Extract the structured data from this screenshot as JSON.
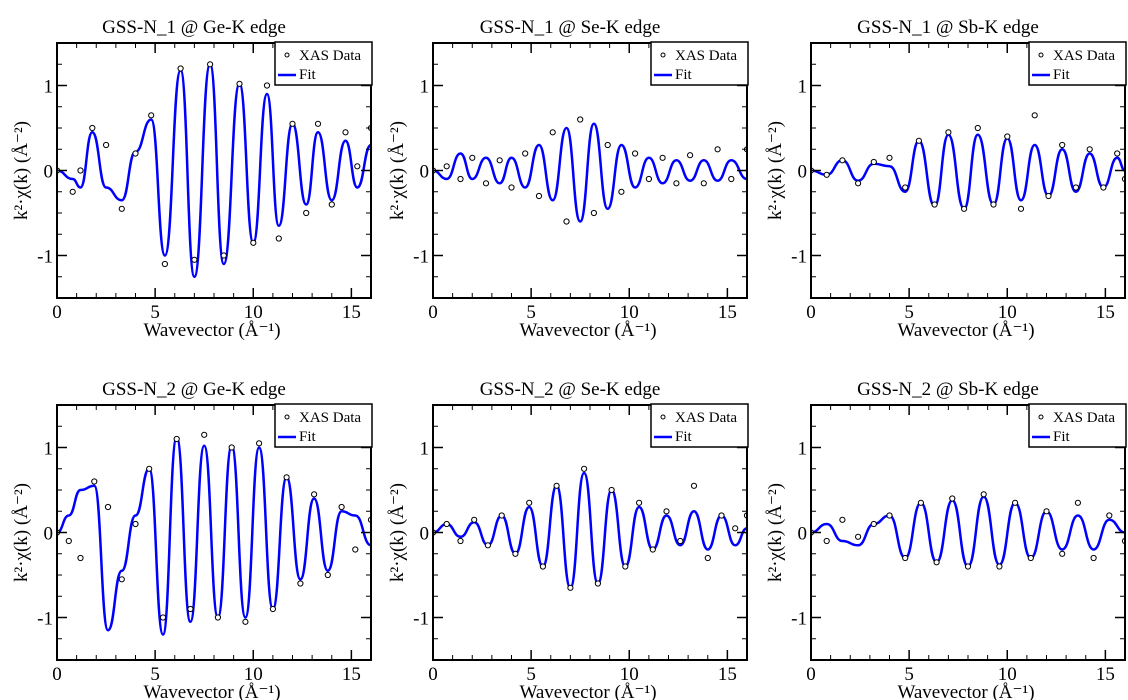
{
  "figure": {
    "layout": "2 rows x 3 columns",
    "data_marker_color": "#000000",
    "fit_color": "#0000ff"
  },
  "chart_data": [
    {
      "type": "line",
      "title": "GSS-N_1 @ Ge-K edge",
      "xlabel": "Wavevector (Å⁻¹)",
      "ylabel": "k²·χ(k) (Å⁻²)",
      "xlim": [
        0,
        16
      ],
      "ylim": [
        -1.5,
        1.5
      ],
      "xticks": [
        "0",
        "5",
        "10",
        "15"
      ],
      "yticks": [
        "-1",
        "0",
        "1"
      ],
      "grid": false,
      "legend": "top-right",
      "series": [
        {
          "name": "XAS Data",
          "style": "open-circle markers",
          "x": [
            0,
            0.8,
            1.2,
            1.8,
            2.5,
            3.3,
            4.0,
            4.8,
            5.5,
            6.3,
            7.0,
            7.8,
            8.5,
            9.3,
            10.0,
            10.7,
            11.3,
            12.0,
            12.7,
            13.3,
            14.0,
            14.7,
            15.3,
            16.0
          ],
          "y": [
            0,
            -0.25,
            0,
            0.5,
            0.3,
            -0.45,
            0.2,
            0.65,
            -1.1,
            1.2,
            -1.05,
            1.25,
            -1.0,
            1.02,
            -0.85,
            1.0,
            -0.8,
            0.55,
            -0.5,
            0.55,
            -0.4,
            0.45,
            0.05,
            0.5
          ]
        },
        {
          "name": "Fit",
          "style": "solid line",
          "x": [
            0,
            0.8,
            1.2,
            1.8,
            2.5,
            3.3,
            4.0,
            4.8,
            5.5,
            6.3,
            7.0,
            7.8,
            8.5,
            9.3,
            10.0,
            10.7,
            11.3,
            12.0,
            12.7,
            13.3,
            14.0,
            14.7,
            15.3,
            16.0
          ],
          "y": [
            0,
            -0.1,
            -0.2,
            0.45,
            -0.2,
            -0.35,
            0.22,
            0.6,
            -1.0,
            1.18,
            -1.25,
            1.25,
            -1.1,
            1.02,
            -0.85,
            0.9,
            -0.65,
            0.55,
            -0.4,
            0.45,
            -0.35,
            0.35,
            -0.2,
            0.3
          ]
        }
      ]
    },
    {
      "type": "line",
      "title": "GSS-N_1 @ Se-K edge",
      "xlabel": "Wavevector (Å⁻¹)",
      "ylabel": "k²·χ(k) (Å⁻²)",
      "xlim": [
        0,
        16
      ],
      "ylim": [
        -1.5,
        1.5
      ],
      "xticks": [
        "0",
        "5",
        "10",
        "15"
      ],
      "yticks": [
        "-1",
        "0",
        "1"
      ],
      "grid": false,
      "legend": "top-right",
      "series": [
        {
          "name": "XAS Data",
          "style": "open-circle markers",
          "x": [
            0,
            0.7,
            1.4,
            2.0,
            2.7,
            3.4,
            4.0,
            4.7,
            5.4,
            6.1,
            6.8,
            7.5,
            8.2,
            8.9,
            9.6,
            10.3,
            11.0,
            11.7,
            12.4,
            13.1,
            13.8,
            14.5,
            15.2,
            16.0
          ],
          "y": [
            0,
            0.05,
            -0.1,
            0.15,
            -0.15,
            0.12,
            -0.2,
            0.2,
            -0.3,
            0.45,
            -0.6,
            0.6,
            -0.5,
            0.3,
            -0.25,
            0.2,
            -0.1,
            0.15,
            -0.15,
            0.18,
            -0.15,
            0.25,
            -0.1,
            0.25
          ]
        },
        {
          "name": "Fit",
          "style": "solid line",
          "x": [
            0,
            0.7,
            1.4,
            2.0,
            2.7,
            3.4,
            4.0,
            4.7,
            5.4,
            6.1,
            6.8,
            7.5,
            8.2,
            8.9,
            9.6,
            10.3,
            11.0,
            11.7,
            12.4,
            13.1,
            13.8,
            14.5,
            15.2,
            16.0
          ],
          "y": [
            0,
            -0.1,
            0.2,
            -0.1,
            0.15,
            -0.15,
            0.15,
            -0.2,
            0.3,
            -0.35,
            0.5,
            -0.6,
            0.55,
            -0.45,
            0.3,
            -0.2,
            0.15,
            -0.15,
            0.12,
            -0.12,
            0.12,
            -0.12,
            0.12,
            -0.1
          ]
        }
      ]
    },
    {
      "type": "line",
      "title": "GSS-N_1 @ Sb-K edge",
      "xlabel": "Wavevector (Å⁻¹)",
      "ylabel": "k²·χ(k) (Å⁻²)",
      "xlim": [
        0,
        16
      ],
      "ylim": [
        -1.5,
        1.5
      ],
      "xticks": [
        "0",
        "5",
        "10",
        "15"
      ],
      "yticks": [
        "-1",
        "0",
        "1"
      ],
      "grid": false,
      "legend": "top-right",
      "series": [
        {
          "name": "XAS Data",
          "style": "open-circle markers",
          "x": [
            0,
            0.8,
            1.6,
            2.4,
            3.2,
            4.0,
            4.8,
            5.5,
            6.3,
            7.0,
            7.8,
            8.5,
            9.3,
            10.0,
            10.7,
            11.4,
            12.1,
            12.8,
            13.5,
            14.2,
            14.9,
            15.6,
            16.0
          ],
          "y": [
            0,
            -0.05,
            0.12,
            -0.15,
            0.1,
            0.15,
            -0.2,
            0.35,
            -0.4,
            0.45,
            -0.45,
            0.5,
            -0.4,
            0.4,
            -0.45,
            0.65,
            -0.3,
            0.3,
            -0.2,
            0.25,
            -0.2,
            0.2,
            -0.1
          ]
        },
        {
          "name": "Fit",
          "style": "solid line",
          "x": [
            0,
            0.8,
            1.6,
            2.4,
            3.2,
            4.0,
            4.8,
            5.5,
            6.3,
            7.0,
            7.8,
            8.5,
            9.3,
            10.0,
            10.7,
            11.4,
            12.1,
            12.8,
            13.5,
            14.2,
            14.9,
            15.6,
            16.0
          ],
          "y": [
            0,
            -0.05,
            0.12,
            -0.12,
            0.08,
            0.05,
            -0.25,
            0.35,
            -0.42,
            0.42,
            -0.45,
            0.42,
            -0.4,
            0.38,
            -0.35,
            0.3,
            -0.3,
            0.25,
            -0.25,
            0.2,
            -0.2,
            0.15,
            0
          ]
        }
      ]
    },
    {
      "type": "line",
      "title": "GSS-N_2 @ Ge-K edge",
      "xlabel": "Wavevector (Å⁻¹)",
      "ylabel": "k²·χ(k) (Å⁻²)",
      "xlim": [
        0,
        16
      ],
      "ylim": [
        -1.5,
        1.5
      ],
      "xticks": [
        "0",
        "5",
        "10",
        "15"
      ],
      "yticks": [
        "-1",
        "0",
        "1"
      ],
      "grid": false,
      "legend": "top-right",
      "series": [
        {
          "name": "XAS Data",
          "style": "open-circle markers",
          "x": [
            0,
            0.6,
            1.2,
            1.9,
            2.6,
            3.3,
            4.0,
            4.7,
            5.4,
            6.1,
            6.8,
            7.5,
            8.2,
            8.9,
            9.6,
            10.3,
            11.0,
            11.7,
            12.4,
            13.1,
            13.8,
            14.5,
            15.2,
            16.0
          ],
          "y": [
            0,
            -0.1,
            -0.3,
            0.6,
            0.3,
            -0.55,
            0.1,
            0.75,
            -1.0,
            1.1,
            -0.9,
            1.15,
            -1.0,
            1.0,
            -1.05,
            1.05,
            -0.9,
            0.65,
            -0.6,
            0.45,
            -0.5,
            0.3,
            -0.2,
            0.15
          ]
        },
        {
          "name": "Fit",
          "style": "solid line",
          "x": [
            0,
            0.6,
            1.2,
            1.9,
            2.6,
            3.3,
            4.0,
            4.7,
            5.4,
            6.1,
            6.8,
            7.5,
            8.2,
            8.9,
            9.6,
            10.3,
            11.0,
            11.7,
            12.4,
            13.1,
            13.8,
            14.5,
            15.2,
            16.0
          ],
          "y": [
            0,
            0.2,
            0.5,
            0.55,
            -1.15,
            -0.45,
            0.2,
            0.75,
            -1.2,
            1.12,
            -1.05,
            1.02,
            -1.0,
            1.02,
            -1.0,
            1.0,
            -0.9,
            0.65,
            -0.55,
            0.4,
            -0.45,
            0.25,
            0.2,
            -0.15
          ]
        }
      ]
    },
    {
      "type": "line",
      "title": "GSS-N_2 @ Se-K edge",
      "xlabel": "Wavevector (Å⁻¹)",
      "ylabel": "k²·χ(k) (Å⁻²)",
      "xlim": [
        0,
        16
      ],
      "ylim": [
        -1.5,
        1.5
      ],
      "xticks": [
        "0",
        "5",
        "10",
        "15"
      ],
      "yticks": [
        "-1",
        "0",
        "1"
      ],
      "grid": false,
      "legend": "top-right",
      "series": [
        {
          "name": "XAS Data",
          "style": "open-circle markers",
          "x": [
            0,
            0.7,
            1.4,
            2.1,
            2.8,
            3.5,
            4.2,
            4.9,
            5.6,
            6.3,
            7.0,
            7.7,
            8.4,
            9.1,
            9.8,
            10.5,
            11.2,
            11.9,
            12.6,
            13.3,
            14.0,
            14.7,
            15.4,
            16.0
          ],
          "y": [
            0,
            0.1,
            -0.1,
            0.15,
            -0.15,
            0.2,
            -0.25,
            0.35,
            -0.4,
            0.55,
            -0.65,
            0.75,
            -0.6,
            0.5,
            -0.4,
            0.35,
            -0.2,
            0.25,
            -0.1,
            0.55,
            -0.3,
            0.2,
            0.05,
            0.2
          ]
        },
        {
          "name": "Fit",
          "style": "solid line",
          "x": [
            0,
            0.7,
            1.4,
            2.1,
            2.8,
            3.5,
            4.2,
            4.9,
            5.6,
            6.3,
            7.0,
            7.7,
            8.4,
            9.1,
            9.8,
            10.5,
            11.2,
            11.9,
            12.6,
            13.3,
            14.0,
            14.7,
            15.4,
            16.0
          ],
          "y": [
            0,
            0.1,
            -0.05,
            0.12,
            -0.15,
            0.2,
            -0.25,
            0.3,
            -0.4,
            0.55,
            -0.65,
            0.7,
            -0.6,
            0.5,
            -0.4,
            0.3,
            -0.2,
            0.2,
            -0.15,
            0.25,
            -0.2,
            0.2,
            -0.15,
            0.05
          ]
        }
      ]
    },
    {
      "type": "line",
      "title": "GSS-N_2 @ Sb-K edge",
      "xlabel": "Wavevector (Å⁻¹)",
      "ylabel": "k²·χ(k) (Å⁻²)",
      "xlim": [
        0,
        16
      ],
      "ylim": [
        -1.5,
        1.5
      ],
      "xticks": [
        "0",
        "5",
        "10",
        "15"
      ],
      "yticks": [
        "-1",
        "0",
        "1"
      ],
      "grid": false,
      "legend": "top-right",
      "series": [
        {
          "name": "XAS Data",
          "style": "open-circle markers",
          "x": [
            0,
            0.8,
            1.6,
            2.4,
            3.2,
            4.0,
            4.8,
            5.6,
            6.4,
            7.2,
            8.0,
            8.8,
            9.6,
            10.4,
            11.2,
            12.0,
            12.8,
            13.6,
            14.4,
            15.2,
            16.0
          ],
          "y": [
            0,
            -0.1,
            0.15,
            -0.05,
            0.1,
            0.2,
            -0.3,
            0.35,
            -0.35,
            0.4,
            -0.4,
            0.45,
            -0.4,
            0.35,
            -0.3,
            0.25,
            -0.25,
            0.35,
            -0.3,
            0.2,
            -0.1
          ]
        },
        {
          "name": "Fit",
          "style": "solid line",
          "x": [
            0,
            0.8,
            1.6,
            2.4,
            3.2,
            4.0,
            4.8,
            5.6,
            6.4,
            7.2,
            8.0,
            8.8,
            9.6,
            10.4,
            11.2,
            12.0,
            12.8,
            13.6,
            14.4,
            15.2,
            16.0
          ],
          "y": [
            0,
            0.1,
            -0.1,
            -0.15,
            0.1,
            0.2,
            -0.3,
            0.35,
            -0.35,
            0.38,
            -0.4,
            0.42,
            -0.38,
            0.35,
            -0.3,
            0.25,
            -0.2,
            0.2,
            -0.2,
            0.15,
            0
          ]
        }
      ]
    }
  ]
}
